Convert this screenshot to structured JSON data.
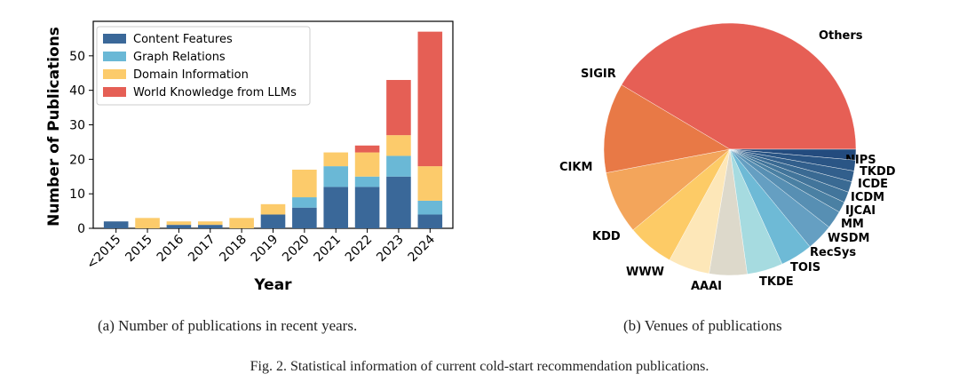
{
  "chart_data": [
    {
      "type": "bar",
      "stacked": true,
      "ylabel": "Number of Publications",
      "xlabel": "Year",
      "ylim": [
        0,
        60
      ],
      "yticks": [
        0,
        10,
        20,
        30,
        40,
        50
      ],
      "categories": [
        "<2015",
        "2015",
        "2016",
        "2017",
        "2018",
        "2019",
        "2020",
        "2021",
        "2022",
        "2023",
        "2024"
      ],
      "series": [
        {
          "name": "Content Features",
          "color": "#3a6899",
          "values": [
            2,
            0,
            1,
            1,
            0,
            4,
            6,
            12,
            12,
            15,
            4
          ]
        },
        {
          "name": "Graph Relations",
          "color": "#6ab8d6",
          "values": [
            0,
            0,
            0,
            0,
            0,
            0,
            3,
            6,
            3,
            6,
            4
          ]
        },
        {
          "name": "Domain Information",
          "color": "#fccb6b",
          "values": [
            0,
            3,
            1,
            1,
            3,
            3,
            8,
            4,
            7,
            6,
            10
          ]
        },
        {
          "name": "World Knowledge from LLMs",
          "color": "#e55f55",
          "values": [
            0,
            0,
            0,
            0,
            0,
            0,
            0,
            0,
            2,
            16,
            39
          ]
        }
      ],
      "legend": "top-left",
      "caption": "(a) Number of publications in recent years."
    },
    {
      "type": "pie",
      "caption": "(b) Venues of publications",
      "slices": [
        {
          "label": "Others",
          "value": 36,
          "color": "#e65f55"
        },
        {
          "label": "NIPS",
          "value": 1.2,
          "color": "#234b7e"
        },
        {
          "label": "TKDD",
          "value": 1.2,
          "color": "#2a5585"
        },
        {
          "label": "ICDE",
          "value": 1.2,
          "color": "#325f8c"
        },
        {
          "label": "ICDM",
          "value": 1.2,
          "color": "#3a6a93"
        },
        {
          "label": "IJCAI",
          "value": 1.2,
          "color": "#42759b"
        },
        {
          "label": "MM",
          "value": 1.2,
          "color": "#4a80a3"
        },
        {
          "label": "WSDM",
          "value": 2.0,
          "color": "#578fb3"
        },
        {
          "label": "RecSys",
          "value": 3.0,
          "color": "#659fc2"
        },
        {
          "label": "TOIS",
          "value": 3.6,
          "color": "#78afd0"
        },
        {
          "label": "TKDE",
          "value": 4.0,
          "color": "#6ebad6"
        },
        {
          "label": "AAAI",
          "value": 4.2,
          "color": "#a6dbe0"
        },
        {
          "label": "WWW",
          "value": 4.6,
          "color": "#ddd9cb"
        },
        {
          "label": "KDD",
          "value": 5.2,
          "color": "#fde7b8"
        },
        {
          "label": "CIKM",
          "value": 7.0,
          "color": "#fdcb66"
        },
        {
          "label": "SIGIR",
          "value": 10.0,
          "color": "#f3a55b"
        },
        {
          "label": "SIGIR_",
          "value": 0,
          "color": "#e87946"
        }
      ]
    }
  ],
  "figure_caption": "Fig. 2.  Statistical information of current cold-start recommendation publications."
}
